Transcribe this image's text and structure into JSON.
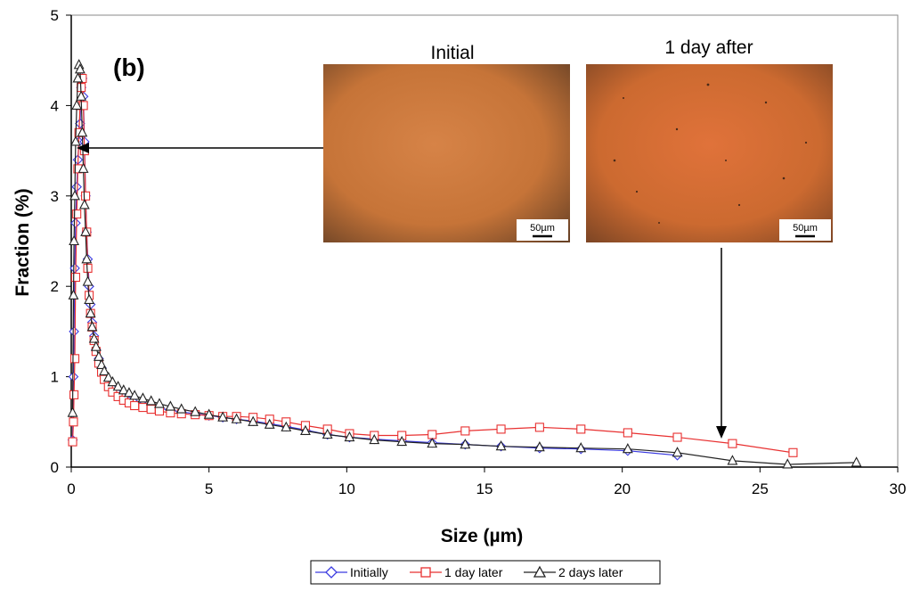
{
  "chart_data": {
    "type": "line",
    "panel_label": "(b)",
    "xlabel": "Size (µm)",
    "ylabel": "Fraction (%)",
    "xlim": [
      0,
      30
    ],
    "ylim": [
      0,
      5
    ],
    "x_ticks": [
      0,
      5,
      10,
      15,
      20,
      25,
      30
    ],
    "y_ticks": [
      0,
      1,
      2,
      3,
      4,
      5
    ],
    "legend_position": "bottom-center",
    "series": [
      {
        "name": "Initially",
        "color": "#3a3ae0",
        "marker": "diamond",
        "x": [
          0.05,
          0.08,
          0.1,
          0.13,
          0.16,
          0.2,
          0.24,
          0.28,
          0.32,
          0.36,
          0.4,
          0.44,
          0.48,
          0.52,
          0.56,
          0.6,
          0.65,
          0.7,
          0.76,
          0.83,
          0.9,
          1.0,
          1.1,
          1.2,
          1.35,
          1.5,
          1.7,
          1.9,
          2.1,
          2.3,
          2.6,
          2.9,
          3.2,
          3.6,
          4.0,
          4.5,
          5.0,
          5.5,
          6.0,
          6.6,
          7.2,
          7.8,
          8.5,
          9.3,
          10.1,
          11.0,
          12.0,
          13.1,
          14.3,
          15.6,
          17.0,
          18.5,
          20.2,
          22.0
        ],
        "y": [
          0.3,
          1.0,
          1.5,
          2.2,
          2.7,
          3.1,
          3.4,
          3.6,
          3.8,
          4.2,
          4.3,
          4.1,
          3.6,
          3.0,
          2.6,
          2.3,
          2.0,
          1.8,
          1.6,
          1.45,
          1.3,
          1.2,
          1.1,
          1.02,
          0.93,
          0.87,
          0.81,
          0.77,
          0.73,
          0.71,
          0.69,
          0.67,
          0.65,
          0.63,
          0.61,
          0.59,
          0.57,
          0.55,
          0.53,
          0.51,
          0.48,
          0.45,
          0.41,
          0.36,
          0.33,
          0.31,
          0.29,
          0.27,
          0.25,
          0.23,
          0.21,
          0.2,
          0.18,
          0.13
        ]
      },
      {
        "name": "1 day later",
        "color": "#e83030",
        "marker": "square",
        "x": [
          0.05,
          0.08,
          0.1,
          0.13,
          0.16,
          0.2,
          0.24,
          0.28,
          0.32,
          0.36,
          0.4,
          0.44,
          0.48,
          0.52,
          0.56,
          0.6,
          0.65,
          0.7,
          0.76,
          0.83,
          0.9,
          1.0,
          1.1,
          1.2,
          1.35,
          1.5,
          1.7,
          1.9,
          2.1,
          2.3,
          2.6,
          2.9,
          3.2,
          3.6,
          4.0,
          4.5,
          5.0,
          5.5,
          6.0,
          6.6,
          7.2,
          7.8,
          8.5,
          9.3,
          10.1,
          11.0,
          12.0,
          13.1,
          14.3,
          15.6,
          17.0,
          18.5,
          20.2,
          22.0,
          24.0,
          26.2
        ],
        "y": [
          0.28,
          0.5,
          0.8,
          1.2,
          2.1,
          2.8,
          3.3,
          3.7,
          4.0,
          4.2,
          4.3,
          4.0,
          3.5,
          3.0,
          2.6,
          2.2,
          1.9,
          1.7,
          1.55,
          1.4,
          1.28,
          1.15,
          1.05,
          0.97,
          0.89,
          0.83,
          0.78,
          0.74,
          0.71,
          0.68,
          0.66,
          0.64,
          0.62,
          0.6,
          0.59,
          0.58,
          0.57,
          0.56,
          0.56,
          0.55,
          0.53,
          0.5,
          0.46,
          0.42,
          0.37,
          0.35,
          0.35,
          0.36,
          0.4,
          0.42,
          0.44,
          0.42,
          0.38,
          0.33,
          0.26,
          0.16
        ]
      },
      {
        "name": "2 days later",
        "color": "#222222",
        "marker": "triangle",
        "x": [
          0.05,
          0.08,
          0.1,
          0.13,
          0.16,
          0.2,
          0.24,
          0.28,
          0.32,
          0.36,
          0.4,
          0.44,
          0.48,
          0.52,
          0.56,
          0.6,
          0.65,
          0.7,
          0.76,
          0.83,
          0.9,
          1.0,
          1.1,
          1.2,
          1.35,
          1.5,
          1.7,
          1.9,
          2.1,
          2.3,
          2.6,
          2.9,
          3.2,
          3.6,
          4.0,
          4.5,
          5.0,
          5.5,
          6.0,
          6.6,
          7.2,
          7.8,
          8.5,
          9.3,
          10.1,
          11.0,
          12.0,
          13.1,
          14.3,
          15.6,
          17.0,
          18.5,
          20.2,
          22.0,
          24.0,
          26.0,
          28.5
        ],
        "y": [
          0.6,
          1.9,
          2.5,
          3.0,
          3.6,
          4.0,
          4.3,
          4.45,
          4.4,
          4.1,
          3.7,
          3.3,
          2.9,
          2.6,
          2.3,
          2.05,
          1.85,
          1.7,
          1.55,
          1.42,
          1.33,
          1.22,
          1.13,
          1.06,
          0.99,
          0.94,
          0.89,
          0.85,
          0.82,
          0.79,
          0.76,
          0.73,
          0.7,
          0.67,
          0.64,
          0.61,
          0.58,
          0.55,
          0.53,
          0.5,
          0.47,
          0.44,
          0.4,
          0.36,
          0.33,
          0.3,
          0.28,
          0.26,
          0.25,
          0.23,
          0.22,
          0.21,
          0.2,
          0.16,
          0.07,
          0.03,
          0.05
        ]
      }
    ]
  },
  "insets": [
    {
      "title": "Initial",
      "scale_label": "50µm"
    },
    {
      "title": "1 day after",
      "scale_label": "50µm"
    }
  ],
  "colors": {
    "micrograph_base": "#cf7a3f",
    "micrograph_edge": "#6a4226",
    "axis": "#000000"
  }
}
